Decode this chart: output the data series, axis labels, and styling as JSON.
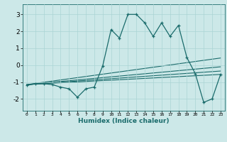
{
  "xlabel": "Humidex (Indice chaleur)",
  "ylabel": "",
  "bg_color": "#cce8e8",
  "line_color": "#1a6b6b",
  "grid_color": "#aad4d4",
  "xlim": [
    -0.5,
    23.5
  ],
  "ylim": [
    -2.7,
    3.6
  ],
  "yticks": [
    -2,
    -1,
    0,
    1,
    2,
    3
  ],
  "xticks": [
    0,
    1,
    2,
    3,
    4,
    5,
    6,
    7,
    8,
    9,
    10,
    11,
    12,
    13,
    14,
    15,
    16,
    17,
    18,
    19,
    20,
    21,
    22,
    23
  ],
  "main_x": [
    0,
    1,
    2,
    3,
    4,
    5,
    6,
    7,
    8,
    9,
    10,
    11,
    12,
    13,
    14,
    15,
    16,
    17,
    18,
    19,
    20,
    21,
    22,
    23
  ],
  "main_y": [
    -1.2,
    -1.1,
    -1.1,
    -1.15,
    -1.3,
    -1.4,
    -1.9,
    -1.4,
    -1.3,
    -0.05,
    2.1,
    1.6,
    3.0,
    3.0,
    2.5,
    1.7,
    2.5,
    1.7,
    2.35,
    0.45,
    -0.5,
    -2.2,
    -2.0,
    -0.55
  ],
  "line1_x": [
    0,
    23
  ],
  "line1_y": [
    -1.15,
    -0.55
  ],
  "line2_x": [
    0,
    23
  ],
  "line2_y": [
    -1.15,
    -0.35
  ],
  "line3_x": [
    0,
    23
  ],
  "line3_y": [
    -1.15,
    -0.1
  ],
  "line4_x": [
    0,
    23
  ],
  "line4_y": [
    -1.15,
    0.42
  ]
}
